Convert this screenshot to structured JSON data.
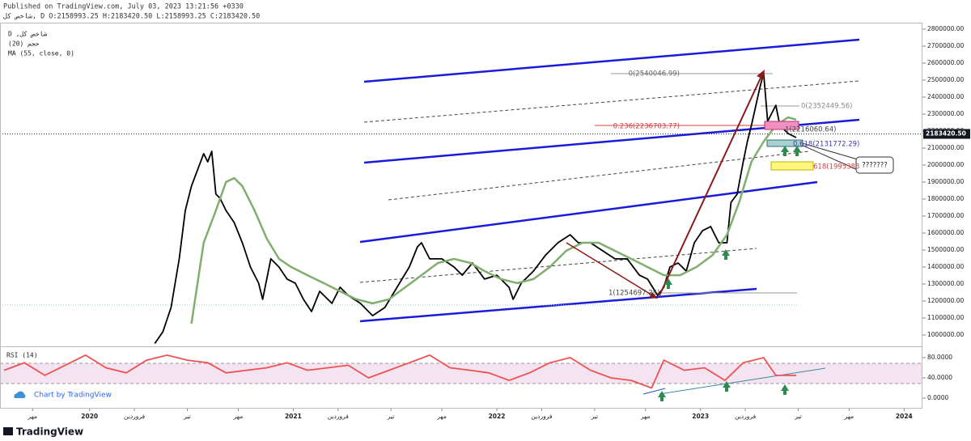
{
  "header": {
    "published": "Published on TradingView.com, July 03, 2023 13:21:56 +0330",
    "ohlc": "شاخص کل, D O:2158993.25 H:2183420.50 L:2158993.25 C:2183420.50"
  },
  "chart_data": {
    "type": "line",
    "volume_label": "(20) حجم",
    "xlim": [
      2019.56,
      2024.09
    ],
    "xticks": [
      {
        "value": 2019.72,
        "label": "مهر"
      },
      2020,
      {
        "value": 2020.22,
        "label": "فروردین"
      },
      {
        "value": 2020.48,
        "label": "تیر"
      },
      {
        "value": 2020.73,
        "label": "مهر"
      },
      2021,
      {
        "value": 2021.22,
        "label": "فروردین"
      },
      {
        "value": 2021.48,
        "label": "تیر"
      },
      {
        "value": 2021.73,
        "label": "مهر"
      },
      2022,
      {
        "value": 2022.22,
        "label": "فروردین"
      },
      {
        "value": 2022.48,
        "label": "تیر"
      },
      {
        "value": 2022.73,
        "label": "مهر"
      },
      2023,
      {
        "value": 2023.22,
        "label": "فروردین"
      },
      {
        "value": 2023.48,
        "label": "تیر"
      },
      {
        "value": 2023.73,
        "label": "مهر"
      },
      2024
    ],
    "ylim": [
      933300,
      2838100
    ],
    "yticks": [
      {
        "value": 1000000,
        "label": "1000000.00"
      },
      {
        "value": 1100000,
        "label": "1100000.00"
      },
      {
        "value": 1200000,
        "label": "1200000.00"
      },
      {
        "value": 1300000,
        "label": "1300000.00"
      },
      {
        "value": 1400000,
        "label": "1400000.00"
      },
      {
        "value": 1500000,
        "label": "1500000.00"
      },
      {
        "value": 1600000,
        "label": "1600000.00"
      },
      {
        "value": 1700000,
        "label": "1700000.00"
      },
      {
        "value": 1800000,
        "label": "1800000.00"
      },
      {
        "value": 1900000,
        "label": "1900000.00"
      },
      {
        "value": 2000000,
        "label": "2000000.00"
      },
      {
        "value": 2100000,
        "label": "2100000.00"
      },
      {
        "value": 2200000,
        "label": "2200000.00"
      },
      {
        "value": 2300000,
        "label": "2300000.00"
      },
      {
        "value": 2400000,
        "label": "2400000.00"
      },
      {
        "value": 2500000,
        "label": "2500000.00"
      },
      {
        "value": 2600000,
        "label": "2600000.00"
      },
      {
        "value": 2700000,
        "label": "2700000.00"
      },
      {
        "value": 2800000,
        "label": "2800000.00"
      }
    ],
    "last_price": {
      "value": 2183420.5,
      "label": "2183420.50"
    },
    "series": [
      {
        "name": "D ,شاخص کل",
        "color": "#000000",
        "x": [
          2020.32,
          2020.36,
          2020.4,
          2020.44,
          2020.47,
          2020.5,
          2020.53,
          2020.56,
          2020.58,
          2020.6,
          2020.62,
          2020.64,
          2020.67,
          2020.71,
          2020.75,
          2020.79,
          2020.83,
          2020.85,
          2020.89,
          2020.93,
          2020.97,
          2021.01,
          2021.05,
          2021.09,
          2021.13,
          2021.19,
          2021.23,
          2021.27,
          2021.33,
          2021.39,
          2021.45,
          2021.51,
          2021.57,
          2021.61,
          2021.63,
          2021.67,
          2021.73,
          2021.79,
          2021.83,
          2021.88,
          2021.94,
          2022.0,
          2022.06,
          2022.08,
          2022.12,
          2022.18,
          2022.24,
          2022.3,
          2022.36,
          2022.4,
          2022.46,
          2022.52,
          2022.58,
          2022.64,
          2022.7,
          2022.74,
          2022.79,
          2022.82,
          2022.85,
          2022.89,
          2022.93,
          2022.97,
          2023.01,
          2023.05,
          2023.09,
          2023.13,
          2023.15,
          2023.18,
          2023.21,
          2023.23,
          2023.25,
          2023.29,
          2023.31,
          2023.33,
          2023.35,
          2023.37,
          2023.39,
          2023.43,
          2023.47
        ],
        "values": [
          950000,
          1019000,
          1162000,
          1448000,
          1733000,
          1876000,
          1971000,
          2067000,
          2019000,
          2081000,
          1829000,
          1805000,
          1733000,
          1662000,
          1543000,
          1400000,
          1305000,
          1210000,
          1448000,
          1400000,
          1329000,
          1305000,
          1210000,
          1138000,
          1257000,
          1186000,
          1281000,
          1233000,
          1186000,
          1114000,
          1162000,
          1281000,
          1400000,
          1519000,
          1543000,
          1448000,
          1448000,
          1400000,
          1352000,
          1424000,
          1329000,
          1352000,
          1281000,
          1210000,
          1305000,
          1376000,
          1471000,
          1543000,
          1590000,
          1543000,
          1543000,
          1495000,
          1448000,
          1448000,
          1352000,
          1329000,
          1233000,
          1281000,
          1400000,
          1424000,
          1376000,
          1543000,
          1614000,
          1638000,
          1543000,
          1543000,
          1781000,
          1829000,
          2019000,
          2138000,
          2233000,
          2448000,
          2543000,
          2257000,
          2305000,
          2352000,
          2233000,
          2186000,
          2162000
        ]
      },
      {
        "name": "MA (55, close, 0)",
        "color": "#7fae6e",
        "x": [
          2020.5,
          2020.56,
          2020.62,
          2020.67,
          2020.71,
          2020.75,
          2020.81,
          2020.87,
          2020.93,
          2020.99,
          2021.07,
          2021.15,
          2021.23,
          2021.31,
          2021.39,
          2021.47,
          2021.55,
          2021.63,
          2021.71,
          2021.79,
          2021.87,
          2021.94,
          2022.02,
          2022.1,
          2022.18,
          2022.26,
          2022.34,
          2022.42,
          2022.5,
          2022.58,
          2022.66,
          2022.74,
          2022.82,
          2022.9,
          2022.98,
          2023.06,
          2023.13,
          2023.19,
          2023.25,
          2023.31,
          2023.37,
          2023.43,
          2023.47
        ],
        "values": [
          1067000,
          1543000,
          1733000,
          1900000,
          1924000,
          1876000,
          1733000,
          1567000,
          1448000,
          1400000,
          1352000,
          1305000,
          1257000,
          1210000,
          1186000,
          1210000,
          1281000,
          1352000,
          1424000,
          1448000,
          1424000,
          1376000,
          1329000,
          1305000,
          1329000,
          1400000,
          1495000,
          1543000,
          1543000,
          1495000,
          1448000,
          1400000,
          1352000,
          1352000,
          1400000,
          1471000,
          1590000,
          1781000,
          2019000,
          2138000,
          2233000,
          2281000,
          2267000
        ]
      }
    ],
    "annotations": [
      "0(2540046.99)",
      "0.236(2236703.77)",
      "0(2352449.56)",
      "1(2216060.64)",
      "0.618(2131772.29)",
      "618(1995383",
      "1(1254697.25)",
      "???????"
    ],
    "rsi": {
      "title": "RSI (14)",
      "color": "#f05050",
      "ylim": [
        -20.8,
        102.4
      ],
      "yticks": [
        {
          "value": 0,
          "label": "0.0000"
        },
        {
          "value": 40,
          "label": "40.0000"
        },
        {
          "value": 80,
          "label": "80.0000"
        }
      ],
      "x": [
        2019.58,
        2019.68,
        2019.78,
        2019.88,
        2019.98,
        2020.08,
        2020.18,
        2020.28,
        2020.38,
        2020.48,
        2020.58,
        2020.67,
        2020.77,
        2020.87,
        2020.97,
        2021.07,
        2021.17,
        2021.27,
        2021.37,
        2021.47,
        2021.57,
        2021.67,
        2021.77,
        2021.87,
        2021.96,
        2022.06,
        2022.16,
        2022.26,
        2022.36,
        2022.46,
        2022.56,
        2022.66,
        2022.76,
        2022.82,
        2022.92,
        2023.02,
        2023.12,
        2023.21,
        2023.31,
        2023.37,
        2023.47
      ],
      "values": [
        55,
        70,
        45,
        65,
        85,
        60,
        50,
        75,
        85,
        75,
        70,
        50,
        55,
        60,
        70,
        55,
        60,
        65,
        40,
        55,
        70,
        85,
        60,
        55,
        50,
        35,
        50,
        70,
        80,
        55,
        40,
        35,
        20,
        75,
        55,
        60,
        35,
        70,
        80,
        45,
        45
      ]
    },
    "watermark": "Chart by TradingView",
    "logo": "TradingView"
  }
}
